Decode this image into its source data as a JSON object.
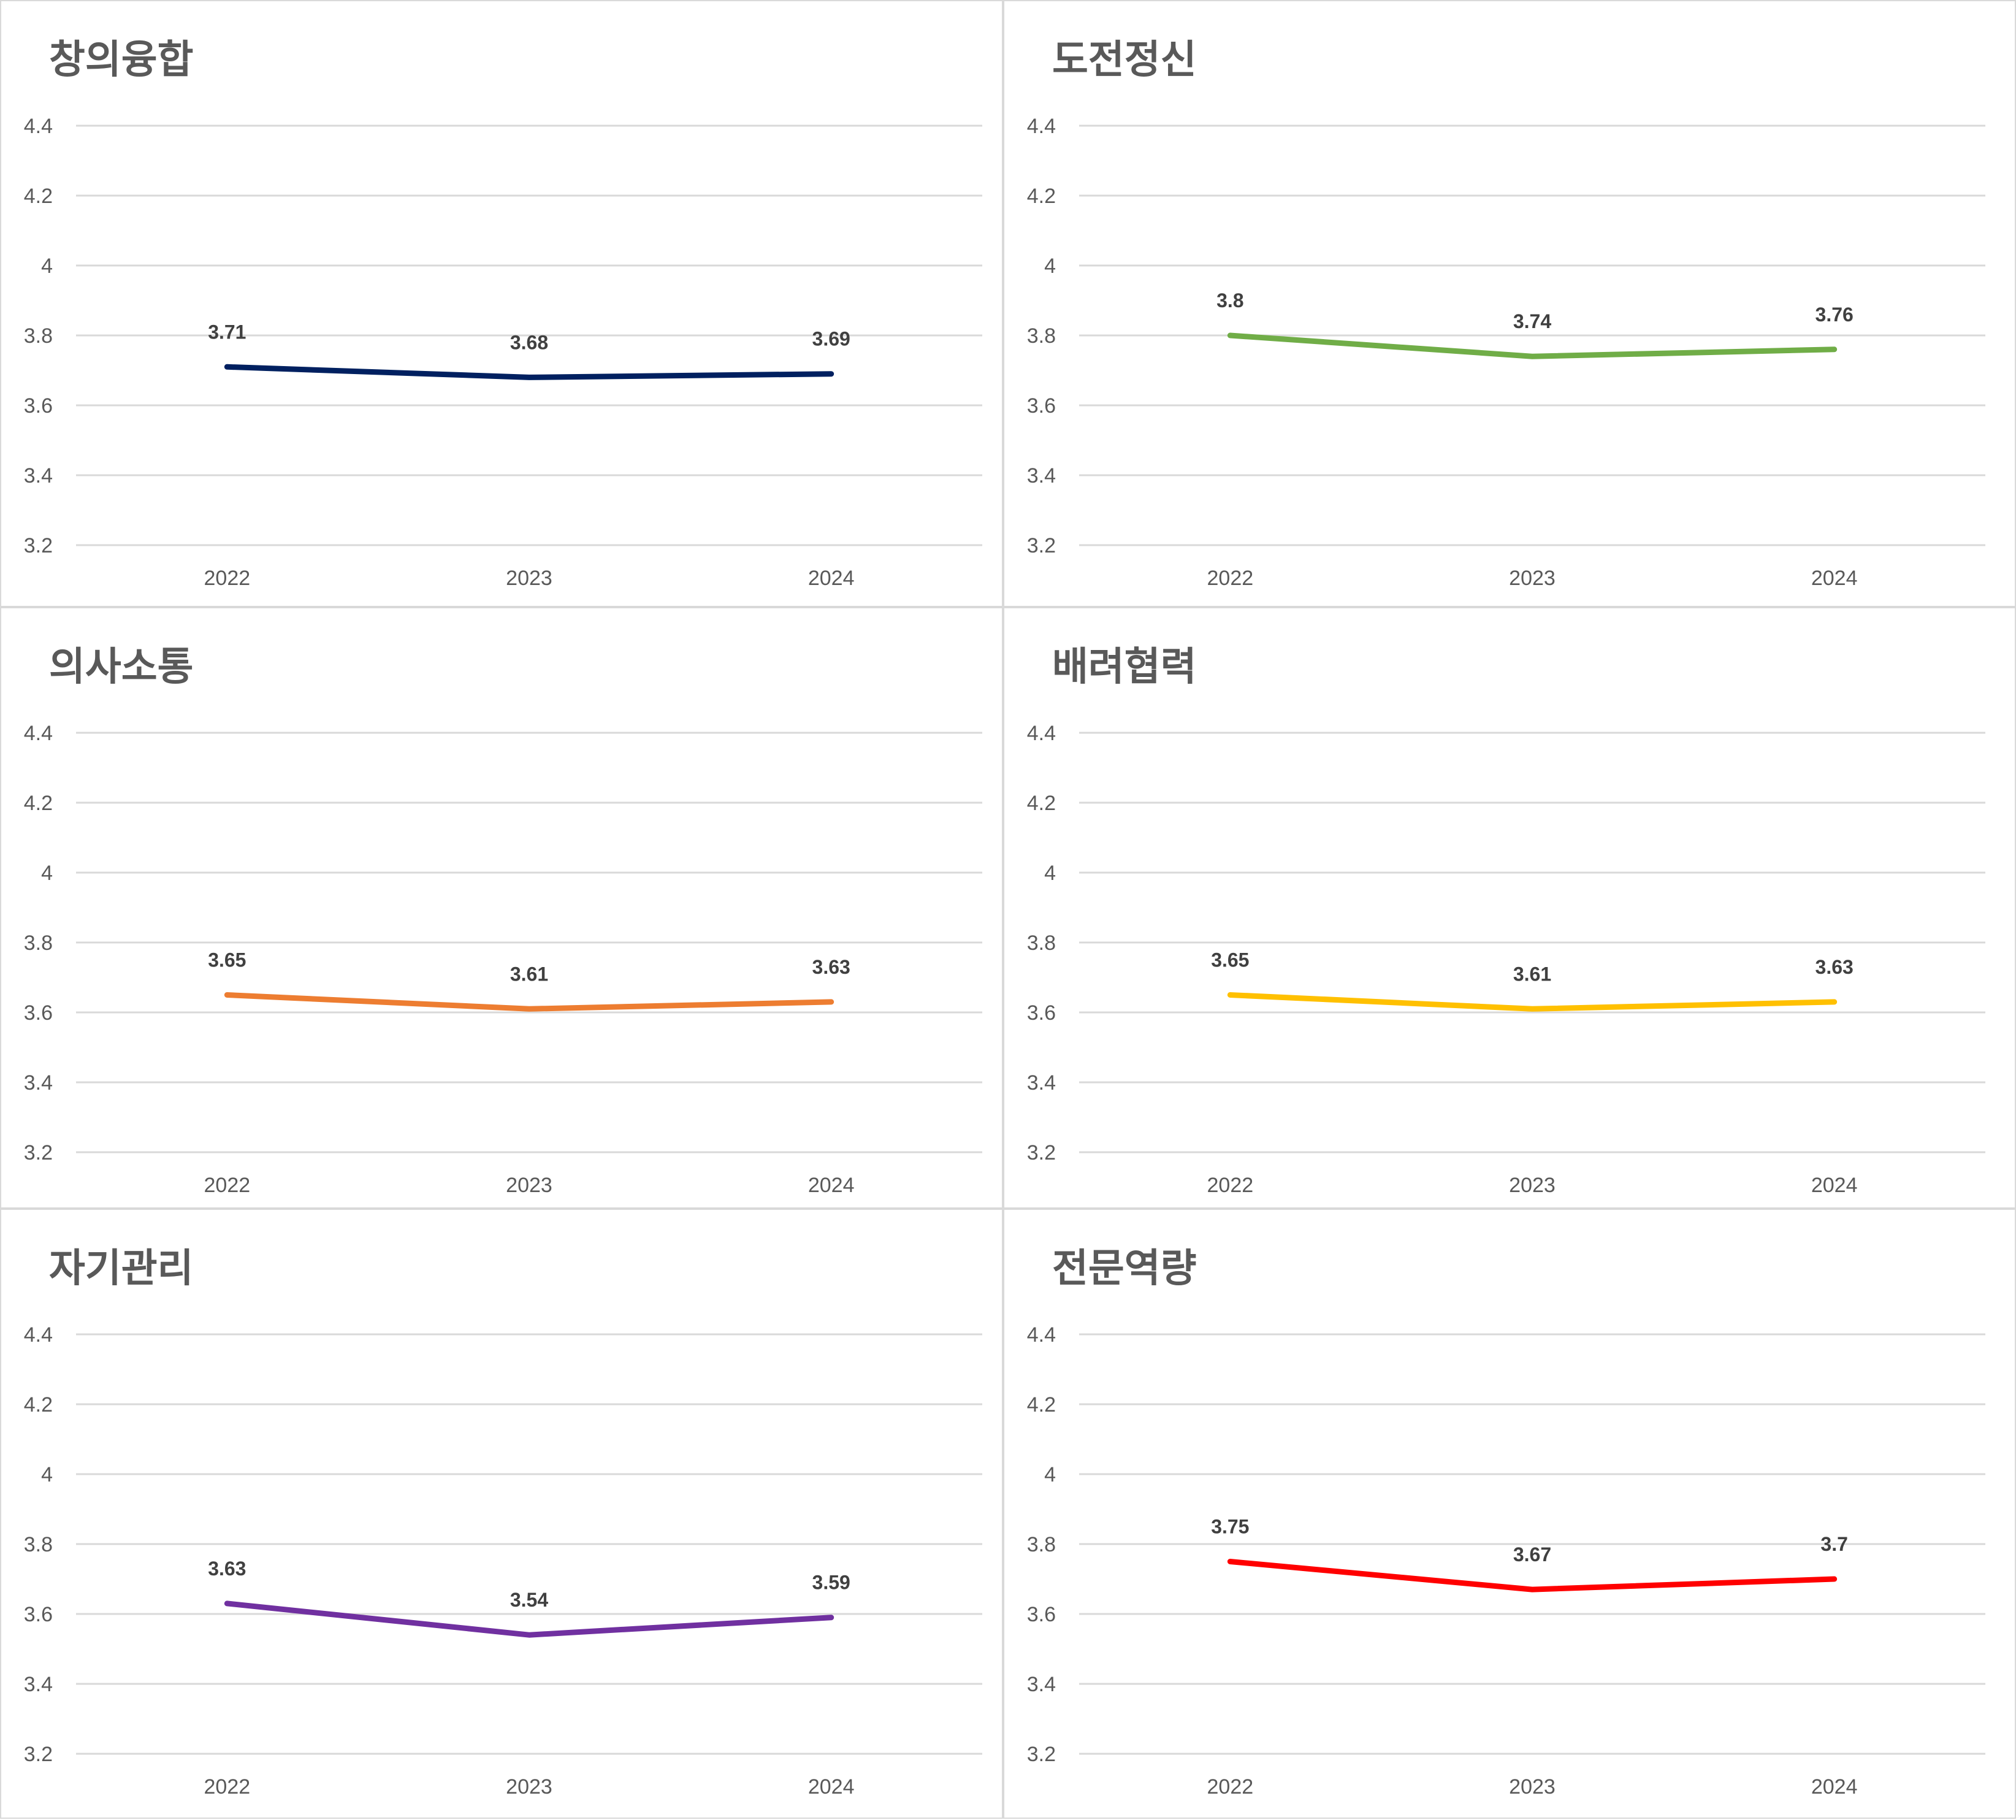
{
  "chart_data": [
    {
      "type": "line",
      "title": "창의융합",
      "categories": [
        "2022",
        "2023",
        "2024"
      ],
      "values": [
        3.71,
        3.68,
        3.69
      ],
      "data_labels": [
        "3.71",
        "3.68",
        "3.69"
      ],
      "color": "#002060",
      "ylim": [
        3.2,
        4.4
      ],
      "yticks": [
        "3.2",
        "3.4",
        "3.6",
        "3.8",
        "4",
        "4.2",
        "4.4"
      ],
      "grid": true
    },
    {
      "type": "line",
      "title": "도전정신",
      "categories": [
        "2022",
        "2023",
        "2024"
      ],
      "values": [
        3.8,
        3.74,
        3.76
      ],
      "data_labels": [
        "3.8",
        "3.74",
        "3.76"
      ],
      "color": "#70ad47",
      "ylim": [
        3.2,
        4.4
      ],
      "yticks": [
        "3.2",
        "3.4",
        "3.6",
        "3.8",
        "4",
        "4.2",
        "4.4"
      ],
      "grid": true
    },
    {
      "type": "line",
      "title": "의사소통",
      "categories": [
        "2022",
        "2023",
        "2024"
      ],
      "values": [
        3.65,
        3.61,
        3.63
      ],
      "data_labels": [
        "3.65",
        "3.61",
        "3.63"
      ],
      "color": "#ed7d31",
      "ylim": [
        3.2,
        4.4
      ],
      "yticks": [
        "3.2",
        "3.4",
        "3.6",
        "3.8",
        "4",
        "4.2",
        "4.4"
      ],
      "grid": true
    },
    {
      "type": "line",
      "title": "배려협력",
      "categories": [
        "2022",
        "2023",
        "2024"
      ],
      "values": [
        3.65,
        3.61,
        3.63
      ],
      "data_labels": [
        "3.65",
        "3.61",
        "3.63"
      ],
      "color": "#ffc000",
      "ylim": [
        3.2,
        4.4
      ],
      "yticks": [
        "3.2",
        "3.4",
        "3.6",
        "3.8",
        "4",
        "4.2",
        "4.4"
      ],
      "grid": true
    },
    {
      "type": "line",
      "title": "자기관리",
      "categories": [
        "2022",
        "2023",
        "2024"
      ],
      "values": [
        3.63,
        3.54,
        3.59
      ],
      "data_labels": [
        "3.63",
        "3.54",
        "3.59"
      ],
      "color": "#7030a0",
      "ylim": [
        3.2,
        4.4
      ],
      "yticks": [
        "3.2",
        "3.4",
        "3.6",
        "3.8",
        "4",
        "4.2",
        "4.4"
      ],
      "grid": true
    },
    {
      "type": "line",
      "title": "전문역량",
      "categories": [
        "2022",
        "2023",
        "2024"
      ],
      "values": [
        3.75,
        3.67,
        3.7
      ],
      "data_labels": [
        "3.75",
        "3.67",
        "3.7"
      ],
      "color": "#ff0000",
      "ylim": [
        3.2,
        4.4
      ],
      "yticks": [
        "3.2",
        "3.4",
        "3.6",
        "3.8",
        "4",
        "4.2",
        "4.4"
      ],
      "grid": true
    }
  ]
}
